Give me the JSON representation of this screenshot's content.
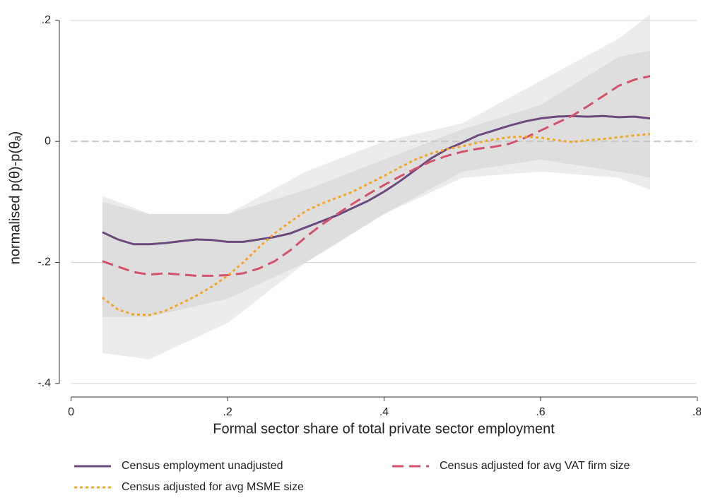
{
  "chart_data": {
    "type": "line",
    "xlabel": "Formal sector share of total private sector employment",
    "ylabel": "normalised p(θ)-p(θₐ)",
    "xlim": [
      -0.015,
      0.805
    ],
    "ylim": [
      -0.42,
      0.222
    ],
    "xticks": [
      0,
      {
        "value": 0.2,
        "label": ".2"
      },
      {
        "value": 0.4,
        "label": ".4"
      },
      {
        "value": 0.6,
        "label": ".6"
      },
      {
        "value": 0.8,
        "label": ".8"
      }
    ],
    "yticks": [
      {
        "value": -0.4,
        "label": "-.4"
      },
      {
        "value": -0.2,
        "label": "-.2"
      },
      0,
      {
        "value": 0.2,
        "label": ".2"
      }
    ],
    "grid": true,
    "legend": "bottom",
    "x": [
      0.04,
      0.06,
      0.08,
      0.1,
      0.12,
      0.14,
      0.16,
      0.18,
      0.2,
      0.22,
      0.24,
      0.26,
      0.28,
      0.3,
      0.32,
      0.34,
      0.36,
      0.38,
      0.4,
      0.42,
      0.44,
      0.46,
      0.48,
      0.5,
      0.52,
      0.54,
      0.56,
      0.58,
      0.6,
      0.62,
      0.64,
      0.66,
      0.68,
      0.7,
      0.72,
      0.74
    ],
    "series": [
      {
        "name": "Census employment unadjusted",
        "color": "#6b4a7e",
        "dash": "solid",
        "values": [
          -0.15,
          -0.162,
          -0.17,
          -0.17,
          -0.168,
          -0.165,
          -0.162,
          -0.163,
          -0.166,
          -0.166,
          -0.162,
          -0.158,
          -0.152,
          -0.142,
          -0.132,
          -0.122,
          -0.11,
          -0.098,
          -0.083,
          -0.066,
          -0.047,
          -0.028,
          -0.013,
          -0.002,
          0.01,
          0.018,
          0.026,
          0.033,
          0.038,
          0.041,
          0.042,
          0.041,
          0.042,
          0.04,
          0.041,
          0.038
        ]
      },
      {
        "name": "Census adjusted for avg VAT firm size",
        "color": "#d2536b",
        "dash": "dash",
        "values": [
          -0.198,
          -0.207,
          -0.216,
          -0.22,
          -0.218,
          -0.22,
          -0.222,
          -0.222,
          -0.221,
          -0.218,
          -0.21,
          -0.198,
          -0.18,
          -0.158,
          -0.138,
          -0.12,
          -0.103,
          -0.087,
          -0.072,
          -0.058,
          -0.045,
          -0.033,
          -0.024,
          -0.017,
          -0.012,
          -0.009,
          -0.004,
          0.006,
          0.018,
          0.03,
          0.042,
          0.058,
          0.075,
          0.092,
          0.102,
          0.108
        ]
      },
      {
        "name": "Census adjusted for avg MSME size",
        "color": "#f5a623",
        "dash": "dot",
        "values": [
          -0.258,
          -0.278,
          -0.286,
          -0.287,
          -0.28,
          -0.268,
          -0.255,
          -0.24,
          -0.222,
          -0.2,
          -0.175,
          -0.152,
          -0.133,
          -0.115,
          -0.103,
          -0.093,
          -0.083,
          -0.07,
          -0.057,
          -0.043,
          -0.03,
          -0.02,
          -0.013,
          -0.008,
          -0.002,
          0.003,
          0.007,
          0.008,
          0.006,
          0.002,
          -0.001,
          0.002,
          0.004,
          0.007,
          0.01,
          0.012
        ]
      }
    ],
    "bands": [
      {
        "color": "#e6e6e6",
        "x": [
          0.04,
          0.1,
          0.2,
          0.3,
          0.4,
          0.5,
          0.6,
          0.7,
          0.74
        ],
        "lower": [
          -0.35,
          -0.36,
          -0.3,
          -0.2,
          -0.12,
          -0.06,
          -0.05,
          -0.06,
          -0.08
        ],
        "upper": [
          -0.09,
          -0.12,
          -0.12,
          -0.05,
          0.0,
          0.03,
          0.1,
          0.17,
          0.21
        ]
      },
      {
        "color": "#d9d9d9",
        "x": [
          0.04,
          0.1,
          0.2,
          0.3,
          0.4,
          0.5,
          0.6,
          0.7,
          0.74
        ],
        "lower": [
          -0.29,
          -0.29,
          -0.26,
          -0.2,
          -0.12,
          -0.05,
          -0.03,
          -0.05,
          -0.06
        ],
        "upper": [
          -0.1,
          -0.12,
          -0.12,
          -0.08,
          -0.03,
          0.02,
          0.06,
          0.14,
          0.15
        ]
      }
    ]
  }
}
